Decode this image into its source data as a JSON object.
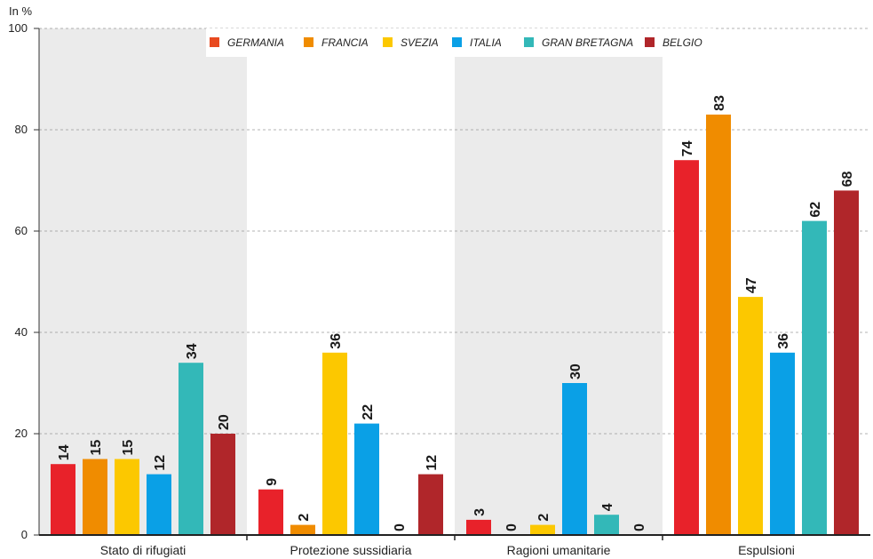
{
  "chart_data": {
    "type": "bar",
    "ylabel": "In %",
    "ylim": [
      0,
      100
    ],
    "yticks": [
      0,
      20,
      40,
      60,
      80,
      100
    ],
    "grid": true,
    "legend_position": "top",
    "categories": [
      "Stato di rifugiati",
      "Protezione sussidiaria",
      "Ragioni umanitarie",
      "Espulsioni"
    ],
    "series": [
      {
        "name": "GERMANIA",
        "color": "#e8222a",
        "legend_color": "#e84a20",
        "values": [
          14,
          9,
          3,
          74
        ]
      },
      {
        "name": "FRANCIA",
        "color": "#f08c00",
        "values": [
          15,
          2,
          0,
          83
        ]
      },
      {
        "name": "SVEZIA",
        "color": "#fcc800",
        "values": [
          15,
          36,
          2,
          47
        ]
      },
      {
        "name": "ITALIA",
        "color": "#0aa0e6",
        "values": [
          12,
          22,
          30,
          36
        ]
      },
      {
        "name": "GRAN BRETAGNA",
        "color": "#33b8b8",
        "values": [
          34,
          0,
          4,
          62
        ]
      },
      {
        "name": "BELGIO",
        "color": "#b0262a",
        "values": [
          20,
          12,
          0,
          68
        ]
      }
    ]
  }
}
